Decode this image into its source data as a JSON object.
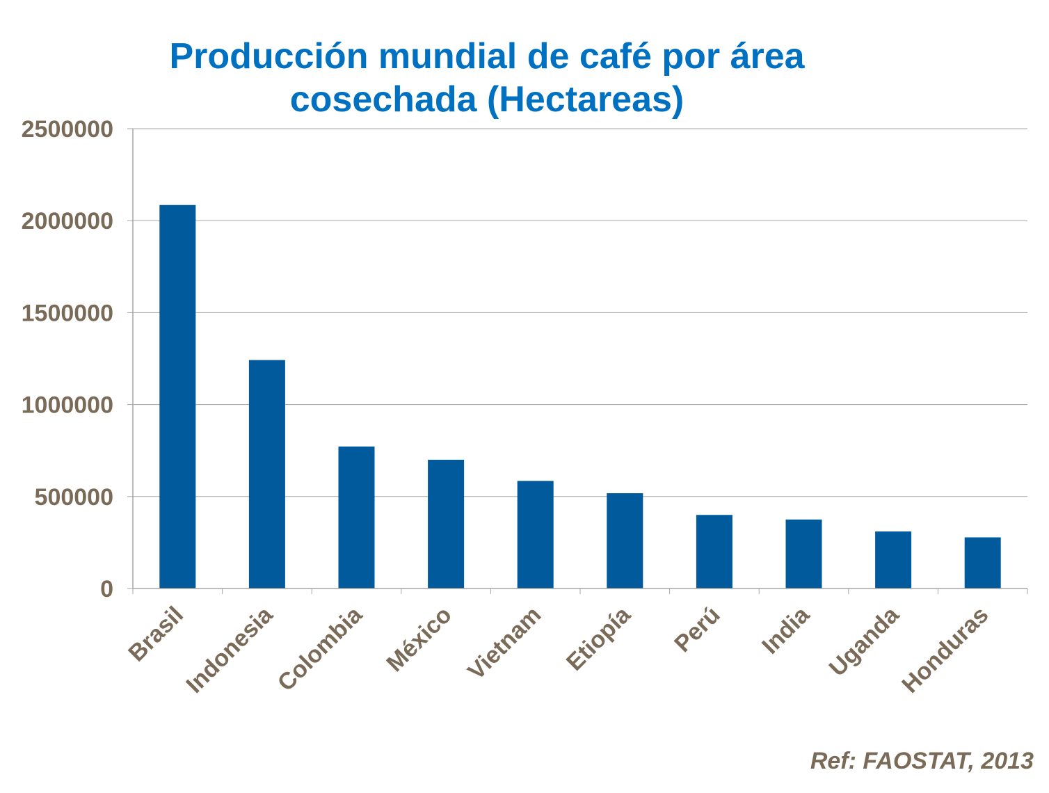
{
  "chart_data": {
    "type": "bar",
    "title_line1": "Producción mundial de café por área",
    "title_line2": "cosechada (Hectareas)",
    "categories": [
      "Brasil",
      "Indonesia",
      "Colombia",
      "México",
      "Vietnam",
      "Etiopía",
      "Perú",
      "India",
      "Uganda",
      "Honduras"
    ],
    "values": [
      2085000,
      1242000,
      772000,
      700000,
      585000,
      518000,
      400000,
      375000,
      310000,
      278000
    ],
    "ylim": [
      0,
      2500000
    ],
    "yticks": [
      "0",
      "500000",
      "1000000",
      "1500000",
      "2000000",
      "2500000"
    ],
    "xlabel": "",
    "ylabel": "",
    "grid": true,
    "legend": "none",
    "colors": {
      "bar": "#005a9c",
      "title": "#0070c0",
      "axis_text": "#7a6a58",
      "grid": "#a6a6a6"
    }
  },
  "source_note": "Ref: FAOSTAT, 2013"
}
